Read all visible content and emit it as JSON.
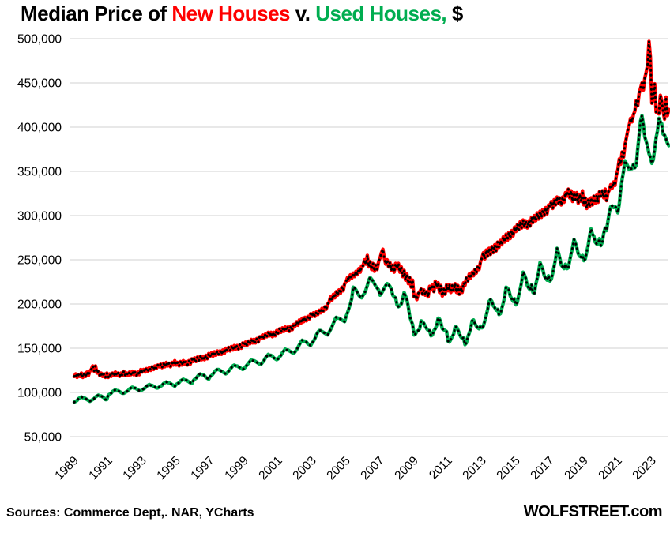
{
  "title": {
    "part_black_1": "Median Price of ",
    "part_new": "New Houses",
    "part_black_2": " v. ",
    "part_used": "Used Houses,",
    "part_black_3": " $"
  },
  "footer": {
    "sources": "Sources: Commerce Dept,. NAR, YCharts",
    "site": "WOLFSTREET.com"
  },
  "colors": {
    "new_houses": "#FF0000",
    "used_houses": "#00AD50",
    "marker_dots": "#000000",
    "gridline": "#D9D9D9",
    "text": "#000000",
    "background": "#FFFFFF"
  },
  "chart_data": {
    "type": "line",
    "title": "Median Price of New Houses v. Used Houses, $",
    "units_note": "series values are in thousands of USD, monthly from 1989-01 through 2024-01",
    "grid": "horizontal gridlines only, no axis frame",
    "legend": "encoded in title text colors",
    "x_axis": {
      "interval": "monthly",
      "start": "1989-01",
      "end": "2024-01",
      "tick_label_rotation_deg": -45,
      "ticks": [
        {
          "year": 1989,
          "label": "1989"
        },
        {
          "year": 1991,
          "label": "1991"
        },
        {
          "year": 1993,
          "label": "1993"
        },
        {
          "year": 1995,
          "label": "1995"
        },
        {
          "year": 1997,
          "label": "1997"
        },
        {
          "year": 1999,
          "label": "1999"
        },
        {
          "year": 2001,
          "label": "2001"
        },
        {
          "year": 2003,
          "label": "2003"
        },
        {
          "year": 2005,
          "label": "2005"
        },
        {
          "year": 2007,
          "label": "2007"
        },
        {
          "year": 2009,
          "label": "2009"
        },
        {
          "year": 2011,
          "label": "2011"
        },
        {
          "year": 2013,
          "label": "2013"
        },
        {
          "year": 2015,
          "label": "2015"
        },
        {
          "year": 2017,
          "label": "2017"
        },
        {
          "year": 2019,
          "label": "2019"
        },
        {
          "year": 2021,
          "label": "2021"
        },
        {
          "year": 2023,
          "label": "2023"
        }
      ]
    },
    "y_axis": {
      "unit": "USD",
      "ylim_thousands": [
        30,
        510
      ],
      "ticks": [
        {
          "value_thousands": 500,
          "label": "500,000"
        },
        {
          "value_thousands": 450,
          "label": "450,000"
        },
        {
          "value_thousands": 400,
          "label": "400,000"
        },
        {
          "value_thousands": 350,
          "label": "350,000"
        },
        {
          "value_thousands": 300,
          "label": "300,000"
        },
        {
          "value_thousands": 250,
          "label": "250,000"
        },
        {
          "value_thousands": 200,
          "label": "200,000"
        },
        {
          "value_thousands": 150,
          "label": "150,000"
        },
        {
          "value_thousands": 100,
          "label": "100,000"
        },
        {
          "value_thousands": 50,
          "label": "50,000"
        }
      ]
    },
    "series": [
      {
        "name": "New Houses",
        "key": "new-houses",
        "color": "#FF0000",
        "style": "thick colored line with black dotted overlay",
        "values_thousands": [
          118,
          121,
          117,
          120,
          118,
          122,
          117,
          121,
          118,
          123,
          119,
          124,
          126,
          130,
          124,
          130,
          122,
          124,
          119,
          122,
          118,
          121,
          117,
          122,
          117,
          121,
          118,
          122,
          119,
          123,
          119,
          122,
          118,
          122,
          119,
          124,
          119,
          122,
          119,
          123,
          120,
          124,
          120,
          123,
          119,
          123,
          120,
          126,
          123,
          126,
          123,
          127,
          124,
          128,
          125,
          129,
          126,
          130,
          127,
          131,
          129,
          132,
          128,
          133,
          129,
          134,
          130,
          133,
          129,
          134,
          131,
          136,
          131,
          134,
          130,
          135,
          131,
          136,
          132,
          135,
          131,
          136,
          132,
          138,
          135,
          139,
          135,
          140,
          136,
          141,
          137,
          141,
          137,
          142,
          138,
          144,
          141,
          145,
          141,
          146,
          142,
          147,
          143,
          147,
          143,
          148,
          144,
          150,
          147,
          151,
          147,
          152,
          148,
          153,
          149,
          153,
          149,
          154,
          150,
          156,
          153,
          157,
          153,
          158,
          155,
          160,
          156,
          160,
          156,
          161,
          157,
          163,
          161,
          165,
          161,
          166,
          163,
          168,
          164,
          168,
          163,
          168,
          164,
          170,
          167,
          172,
          168,
          173,
          169,
          174,
          170,
          174,
          169,
          175,
          171,
          177,
          175,
          180,
          176,
          182,
          178,
          184,
          180,
          185,
          181,
          186,
          183,
          189,
          186,
          190,
          186,
          191,
          188,
          193,
          190,
          195,
          192,
          197,
          194,
          200,
          202,
          208,
          204,
          211,
          207,
          214,
          210,
          216,
          212,
          219,
          215,
          223,
          225,
          230,
          227,
          233,
          229,
          235,
          231,
          237,
          233,
          240,
          236,
          243,
          243,
          250,
          245,
          255,
          242,
          248,
          239,
          246,
          237,
          244,
          239,
          248,
          252,
          258,
          262,
          252,
          245,
          250,
          242,
          247,
          238,
          244,
          236,
          246,
          240,
          246,
          236,
          242,
          231,
          238,
          227,
          234,
          223,
          230,
          219,
          227,
          208,
          210,
          205,
          212,
          214,
          217,
          211,
          216,
          210,
          214,
          208,
          220,
          216,
          222,
          214,
          226,
          219,
          224,
          213,
          221,
          209,
          217,
          211,
          222,
          215,
          222,
          213,
          221,
          215,
          223,
          213,
          221,
          211,
          219,
          213,
          224,
          221,
          230,
          226,
          234,
          229,
          236,
          232,
          239,
          235,
          242,
          239,
          248,
          252,
          258,
          251,
          261,
          254,
          263,
          256,
          265,
          258,
          267,
          260,
          270,
          264,
          272,
          267,
          276,
          270,
          279,
          272,
          281,
          274,
          283,
          277,
          287,
          282,
          290,
          284,
          293,
          286,
          295,
          287,
          294,
          286,
          294,
          288,
          298,
          292,
          300,
          294,
          303,
          296,
          305,
          298,
          307,
          300,
          309,
          302,
          312,
          310,
          316,
          308,
          318,
          312,
          321,
          314,
          320,
          312,
          321,
          315,
          326,
          322,
          330,
          320,
          328,
          316,
          326,
          318,
          326,
          314,
          324,
          316,
          328,
          312,
          320,
          308,
          318,
          310,
          320,
          312,
          322,
          314,
          323,
          315,
          327,
          322,
          328,
          320,
          330,
          317,
          326,
          329,
          335,
          331,
          338,
          334,
          346,
          352,
          364,
          358,
          372,
          366,
          380,
          388,
          396,
          402,
          410,
          406,
          414,
          418,
          430,
          424,
          438,
          444,
          450,
          442,
          455,
          462,
          470,
          497,
          479,
          427,
          433,
          449,
          417,
          416,
          415,
          436,
          430,
          418,
          409,
          434,
          413,
          420
        ]
      },
      {
        "name": "Used Houses",
        "key": "used-houses",
        "color": "#00AD50",
        "style": "thick colored line with black dotted overlay",
        "values_thousands": [
          89,
          90,
          91,
          93,
          94,
          95,
          94,
          94,
          93,
          92,
          91,
          90,
          91,
          92,
          93,
          95,
          96,
          97,
          96,
          96,
          95,
          94,
          92,
          92,
          97,
          98,
          99,
          101,
          102,
          103,
          102,
          102,
          101,
          100,
          99,
          99,
          100,
          101,
          102,
          104,
          105,
          106,
          105,
          105,
          104,
          103,
          102,
          102,
          103,
          104,
          105,
          107,
          108,
          109,
          108,
          108,
          107,
          106,
          105,
          105,
          106,
          107,
          108,
          110,
          111,
          112,
          111,
          111,
          110,
          109,
          108,
          107,
          109,
          110,
          111,
          113,
          114,
          115,
          114,
          114,
          113,
          112,
          111,
          110,
          113,
          115,
          116,
          118,
          120,
          121,
          120,
          120,
          119,
          117,
          116,
          115,
          118,
          119,
          121,
          123,
          125,
          126,
          126,
          125,
          124,
          123,
          122,
          121,
          122,
          124,
          126,
          128,
          130,
          131,
          130,
          130,
          129,
          128,
          127,
          126,
          127,
          129,
          131,
          133,
          135,
          137,
          136,
          136,
          135,
          134,
          133,
          132,
          132,
          134,
          136,
          139,
          141,
          143,
          142,
          142,
          141,
          139,
          138,
          137,
          138,
          140,
          142,
          145,
          147,
          149,
          148,
          148,
          147,
          146,
          145,
          144,
          146,
          148,
          151,
          154,
          157,
          159,
          158,
          158,
          157,
          155,
          154,
          153,
          156,
          158,
          161,
          165,
          168,
          170,
          170,
          169,
          168,
          167,
          166,
          165,
          168,
          171,
          174,
          178,
          182,
          185,
          184,
          184,
          183,
          182,
          181,
          180,
          186,
          190,
          195,
          200,
          206,
          219,
          218,
          216,
          213,
          210,
          208,
          207,
          210,
          212,
          216,
          221,
          227,
          230,
          228,
          226,
          223,
          220,
          218,
          216,
          210,
          212,
          215,
          218,
          221,
          223,
          222,
          220,
          217,
          210,
          208,
          207,
          199,
          197,
          198,
          200,
          206,
          213,
          209,
          205,
          197,
          186,
          181,
          177,
          165,
          166,
          169,
          170,
          172,
          181,
          180,
          178,
          175,
          172,
          170,
          170,
          164,
          165,
          170,
          172,
          176,
          184,
          183,
          179,
          172,
          171,
          170,
          169,
          158,
          157,
          160,
          163,
          166,
          174,
          174,
          171,
          167,
          163,
          161,
          162,
          154,
          156,
          163,
          167,
          172,
          181,
          182,
          178,
          175,
          173,
          172,
          175,
          173,
          175,
          181,
          187,
          194,
          203,
          205,
          203,
          198,
          196,
          193,
          194,
          188,
          189,
          195,
          201,
          208,
          219,
          218,
          216,
          209,
          206,
          203,
          206,
          199,
          202,
          210,
          217,
          225,
          236,
          233,
          229,
          221,
          218,
          216,
          222,
          213,
          212,
          222,
          229,
          236,
          247,
          243,
          239,
          232,
          229,
          227,
          232,
          226,
          228,
          235,
          243,
          251,
          263,
          258,
          252,
          244,
          242,
          240,
          245,
          240,
          241,
          249,
          257,
          264,
          273,
          269,
          264,
          257,
          254,
          253,
          255,
          249,
          251,
          259,
          266,
          277,
          285,
          279,
          277,
          270,
          268,
          268,
          274,
          266,
          270,
          280,
          286,
          283,
          294,
          304,
          310,
          311,
          309,
          310,
          309,
          303,
          313,
          329,
          341,
          350,
          362,
          359,
          356,
          352,
          353,
          353,
          358,
          354,
          357,
          375,
          391,
          407,
          413,
          403,
          389,
          384,
          378,
          370,
          366,
          359,
          363,
          375,
          388,
          396,
          410,
          406,
          404,
          392,
          391,
          387,
          382,
          379
        ]
      }
    ]
  }
}
